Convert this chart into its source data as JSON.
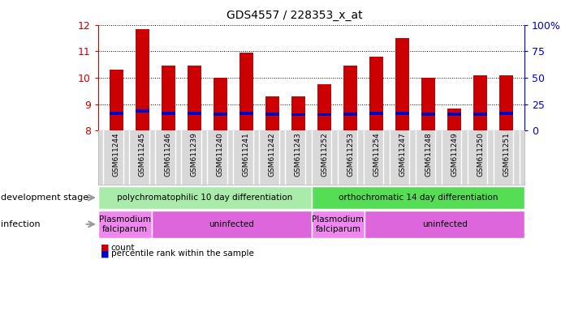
{
  "title": "GDS4557 / 228353_x_at",
  "samples": [
    "GSM611244",
    "GSM611245",
    "GSM611246",
    "GSM611239",
    "GSM611240",
    "GSM611241",
    "GSM611242",
    "GSM611243",
    "GSM611252",
    "GSM611253",
    "GSM611254",
    "GSM611247",
    "GSM611248",
    "GSM611249",
    "GSM611250",
    "GSM611251"
  ],
  "bar_values": [
    10.3,
    11.85,
    10.45,
    10.45,
    10.0,
    10.95,
    9.3,
    9.3,
    9.75,
    10.45,
    10.8,
    11.5,
    10.0,
    8.85,
    10.1,
    10.1
  ],
  "percentile_values": [
    8.65,
    8.75,
    8.65,
    8.65,
    8.62,
    8.65,
    8.62,
    8.6,
    8.6,
    8.63,
    8.65,
    8.65,
    8.62,
    8.63,
    8.63,
    8.65
  ],
  "ylim": [
    8,
    12
  ],
  "right_ylim": [
    0,
    100
  ],
  "right_yticks": [
    0,
    25,
    50,
    75,
    100
  ],
  "right_yticklabels": [
    "0",
    "25",
    "50",
    "75",
    "100%"
  ],
  "left_yticks": [
    8,
    9,
    10,
    11,
    12
  ],
  "bar_color": "#cc0000",
  "percentile_color": "#0000cc",
  "bar_width": 0.55,
  "development_stage_groups": [
    {
      "label": "polychromatophilic 10 day differentiation",
      "start": 0,
      "end": 8,
      "color": "#aaeaaa"
    },
    {
      "label": "orthochromatic 14 day differentiation",
      "start": 8,
      "end": 16,
      "color": "#55dd55"
    }
  ],
  "infection_groups": [
    {
      "label": "Plasmodium\nfalciparum",
      "start": 0,
      "end": 2,
      "color": "#ee88ee"
    },
    {
      "label": "uninfected",
      "start": 2,
      "end": 8,
      "color": "#dd66dd"
    },
    {
      "label": "Plasmodium\nfalciparum",
      "start": 8,
      "end": 10,
      "color": "#ee88ee"
    },
    {
      "label": "uninfected",
      "start": 10,
      "end": 16,
      "color": "#dd66dd"
    }
  ],
  "dev_stage_label": "development stage",
  "infection_label": "infection",
  "left_tick_color": "#cc0000",
  "right_tick_color": "#0000cc",
  "xtick_bg": "#d8d8d8",
  "plot_bg": "white",
  "legend_count_label": "count",
  "legend_pct_label": "percentile rank within the sample"
}
